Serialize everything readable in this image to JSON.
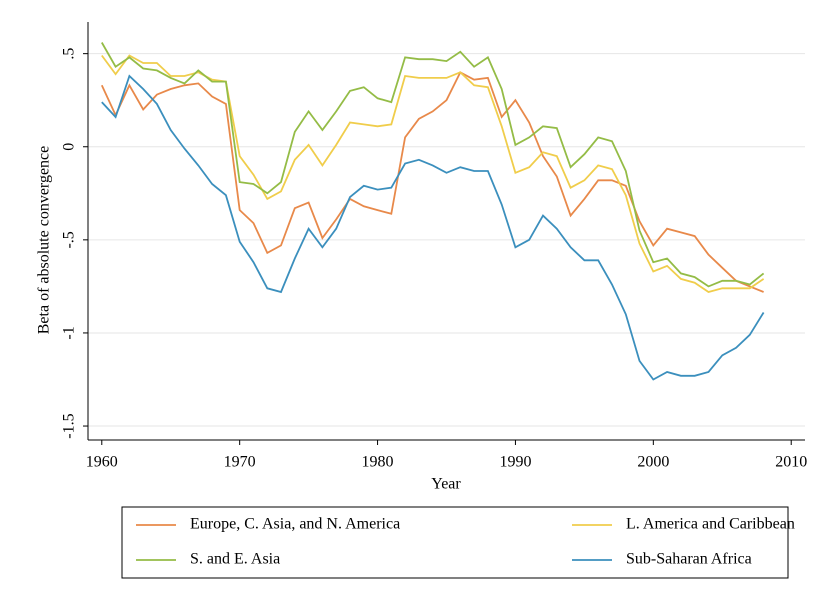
{
  "chart_data": {
    "type": "line",
    "ylabel": "Beta of absolute convergence",
    "xlabel": "Year",
    "x": [
      1960,
      1961,
      1962,
      1963,
      1964,
      1965,
      1966,
      1967,
      1968,
      1969,
      1970,
      1971,
      1972,
      1973,
      1974,
      1975,
      1976,
      1977,
      1978,
      1979,
      1980,
      1981,
      1982,
      1983,
      1984,
      1985,
      1986,
      1987,
      1988,
      1989,
      1990,
      1991,
      1992,
      1993,
      1994,
      1995,
      1996,
      1997,
      1998,
      1999,
      2000,
      2001,
      2002,
      2003,
      2004,
      2005,
      2006,
      2007,
      2008
    ],
    "series": [
      {
        "name": "Europe, C. Asia, and N. America",
        "color": "#e8894a",
        "values": [
          0.33,
          0.17,
          0.33,
          0.2,
          0.28,
          0.31,
          0.33,
          0.34,
          0.27,
          0.23,
          -0.34,
          -0.41,
          -0.57,
          -0.53,
          -0.33,
          -0.3,
          -0.49,
          -0.39,
          -0.28,
          -0.32,
          -0.34,
          -0.36,
          0.05,
          0.15,
          0.19,
          0.25,
          0.4,
          0.36,
          0.37,
          0.16,
          0.25,
          0.13,
          -0.05,
          -0.16,
          -0.37,
          -0.28,
          -0.18,
          -0.18,
          -0.21,
          -0.4,
          -0.53,
          -0.44,
          -0.46,
          -0.48,
          -0.58,
          -0.65,
          -0.72,
          -0.75,
          -0.78
        ]
      },
      {
        "name": "L. America and Caribbean",
        "color": "#f0cd4b",
        "values": [
          0.49,
          0.39,
          0.49,
          0.45,
          0.45,
          0.38,
          0.38,
          0.4,
          0.36,
          0.35,
          -0.05,
          -0.15,
          -0.28,
          -0.24,
          -0.07,
          0.01,
          -0.1,
          0.01,
          0.13,
          0.12,
          0.11,
          0.12,
          0.38,
          0.37,
          0.37,
          0.37,
          0.4,
          0.33,
          0.32,
          0.11,
          -0.14,
          -0.11,
          -0.03,
          -0.05,
          -0.22,
          -0.18,
          -0.1,
          -0.12,
          -0.26,
          -0.52,
          -0.67,
          -0.64,
          -0.71,
          -0.73,
          -0.78,
          -0.76,
          -0.76,
          -0.76,
          -0.71
        ]
      },
      {
        "name": "S. and E. Asia",
        "color": "#94bc46",
        "values": [
          0.56,
          0.43,
          0.48,
          0.42,
          0.41,
          0.37,
          0.34,
          0.41,
          0.35,
          0.35,
          -0.19,
          -0.2,
          -0.25,
          -0.19,
          0.08,
          0.19,
          0.09,
          0.19,
          0.3,
          0.32,
          0.26,
          0.24,
          0.48,
          0.47,
          0.47,
          0.46,
          0.51,
          0.43,
          0.48,
          0.31,
          0.01,
          0.05,
          0.11,
          0.1,
          -0.11,
          -0.04,
          0.05,
          0.03,
          -0.13,
          -0.45,
          -0.62,
          -0.6,
          -0.68,
          -0.7,
          -0.75,
          -0.72,
          -0.72,
          -0.74,
          -0.68
        ]
      },
      {
        "name": "Sub-Saharan Africa",
        "color": "#3b8fbd",
        "values": [
          0.24,
          0.16,
          0.38,
          0.31,
          0.23,
          0.09,
          -0.01,
          -0.1,
          -0.2,
          -0.26,
          -0.51,
          -0.62,
          -0.76,
          -0.78,
          -0.6,
          -0.44,
          -0.54,
          -0.44,
          -0.27,
          -0.21,
          -0.23,
          -0.22,
          -0.09,
          -0.07,
          -0.1,
          -0.14,
          -0.11,
          -0.13,
          -0.13,
          -0.31,
          -0.54,
          -0.5,
          -0.37,
          -0.44,
          -0.54,
          -0.61,
          -0.61,
          -0.74,
          -0.9,
          -1.15,
          -1.25,
          -1.21,
          -1.23,
          -1.23,
          -1.21,
          -1.12,
          -1.08,
          -1.01,
          -0.89
        ]
      }
    ],
    "xlim": [
      1959,
      2011
    ],
    "ylim": [
      -1.575,
      0.67
    ],
    "xticks": [
      1960,
      1970,
      1980,
      1990,
      2000,
      2010
    ],
    "yticks": [
      {
        "value": 0.5,
        "label": ".5"
      },
      0,
      {
        "value": -0.5,
        "label": "-.5"
      },
      -1,
      -1.5
    ],
    "grid": true
  }
}
